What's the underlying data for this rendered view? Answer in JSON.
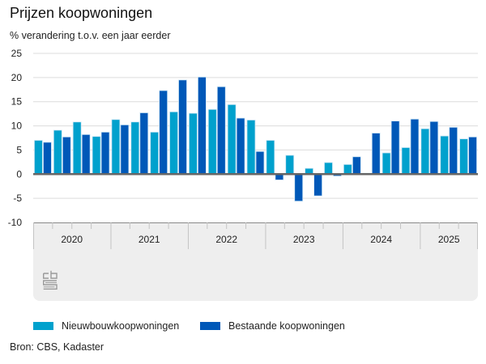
{
  "header": {
    "title": "Prijzen koopwoningen",
    "subtitle": "% verandering t.o.v. een jaar eerder"
  },
  "legend": {
    "items": [
      {
        "label": "Nieuwbouwkoopwoningen",
        "color": "#00a1cd"
      },
      {
        "label": "Bestaande koopwoningen",
        "color": "#0058b8"
      }
    ]
  },
  "source": "Bron: CBS, Kadaster",
  "logo": {
    "text": "cbs",
    "icon": "cbs-logo-icon"
  },
  "chart_data": {
    "type": "bar",
    "title": "Prijzen koopwoningen",
    "ylabel": "% verandering t.o.v. een jaar eerder",
    "xlabel": "",
    "ylim": [
      -10,
      25
    ],
    "yticks": [
      25,
      20,
      15,
      10,
      5,
      0,
      -5,
      -10
    ],
    "grid": true,
    "legend_position": "bottom",
    "years": [
      {
        "label": "2020",
        "quarters": 4
      },
      {
        "label": "2021",
        "quarters": 4
      },
      {
        "label": "2022",
        "quarters": 4
      },
      {
        "label": "2023",
        "quarters": 4
      },
      {
        "label": "2024",
        "quarters": 4
      },
      {
        "label": "2025",
        "quarters": 3
      }
    ],
    "categories": [
      "2020 Q1",
      "2020 Q2",
      "2020 Q3",
      "2020 Q4",
      "2021 Q1",
      "2021 Q2",
      "2021 Q3",
      "2021 Q4",
      "2022 Q1",
      "2022 Q2",
      "2022 Q3",
      "2022 Q4",
      "2023 Q1",
      "2023 Q2",
      "2023 Q3",
      "2023 Q4",
      "2024 Q1",
      "2024 Q2",
      "2024 Q3",
      "2024 Q4",
      "2025 Q1",
      "2025 Q2",
      "2025 Q3"
    ],
    "series": [
      {
        "name": "Nieuwbouwkoopwoningen",
        "color": "#00a1cd",
        "values": [
          7.0,
          9.1,
          10.8,
          7.8,
          11.3,
          10.8,
          8.7,
          12.9,
          12.6,
          13.4,
          14.4,
          11.2,
          7.0,
          3.9,
          1.2,
          2.4,
          2.0,
          0.2,
          4.4,
          5.5,
          9.4,
          7.9,
          7.3
        ]
      },
      {
        "name": "Bestaande koopwoningen",
        "color": "#0058b8",
        "values": [
          6.6,
          7.7,
          8.2,
          8.7,
          10.2,
          12.7,
          17.3,
          19.5,
          20.1,
          18.1,
          11.6,
          4.7,
          -1.2,
          -5.6,
          -4.5,
          -0.4,
          3.6,
          8.5,
          11.0,
          11.4,
          10.9,
          9.7,
          7.7
        ]
      }
    ]
  }
}
